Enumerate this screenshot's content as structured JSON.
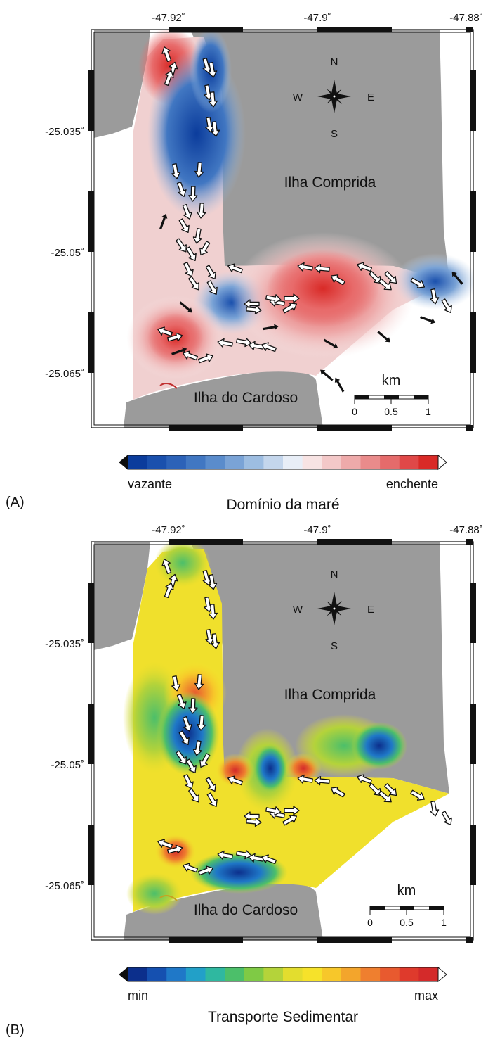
{
  "figure": {
    "panels": [
      {
        "id": "A",
        "tag": "(A)",
        "lon_ticks": [
          "-47.92˚",
          "-47.9˚",
          "-47.88˚"
        ],
        "lat_ticks": [
          "-25.035˚",
          "-25.05˚",
          "-25.065˚"
        ],
        "places": {
          "island_east": "Ilha Comprida",
          "island_south": "Ilha do Cardoso"
        },
        "compass": {
          "n": "N",
          "s": "S",
          "e": "E",
          "w": "W"
        },
        "scale_bar": {
          "title": "km",
          "ticks": [
            "0",
            "0.5",
            "1"
          ]
        },
        "colorbar": {
          "min_label": "vazante",
          "max_label": "enchente",
          "title": "Domínio da maré",
          "colors": [
            "#0b3c9c",
            "#1a50ad",
            "#2c62b8",
            "#4177c2",
            "#5a8ccc",
            "#7aa3d6",
            "#9dbde1",
            "#c4d6ec",
            "#e8eef7",
            "#f7e3e3",
            "#f3c8c8",
            "#eeaaaa",
            "#e98b8b",
            "#e56b6b",
            "#e04848",
            "#d92a27"
          ]
        }
      },
      {
        "id": "B",
        "tag": "(B)",
        "lon_ticks": [
          "-47.92˚",
          "-47.9˚",
          "-47.88˚"
        ],
        "lat_ticks": [
          "-25.035˚",
          "-25.05˚",
          "-25.065˚"
        ],
        "places": {
          "island_east": "Ilha Comprida",
          "island_south": "Ilha do Cardoso"
        },
        "compass": {
          "n": "N",
          "s": "S",
          "e": "E",
          "w": "W"
        },
        "scale_bar": {
          "title": "km",
          "ticks": [
            "0",
            "0.5",
            "1"
          ]
        },
        "colorbar": {
          "min_label": "min",
          "max_label": "max",
          "title": "Transporte Sedimentar",
          "colors": [
            "#0c2f8c",
            "#1550b0",
            "#1f78c8",
            "#22a0c8",
            "#2fb8a0",
            "#4cbf6a",
            "#7fca45",
            "#b4d33a",
            "#e3dd2e",
            "#f6e22a",
            "#f7c72a",
            "#f3a52c",
            "#ef7f2f",
            "#e85a2f",
            "#df3a2c",
            "#d42a2a"
          ]
        }
      }
    ]
  }
}
